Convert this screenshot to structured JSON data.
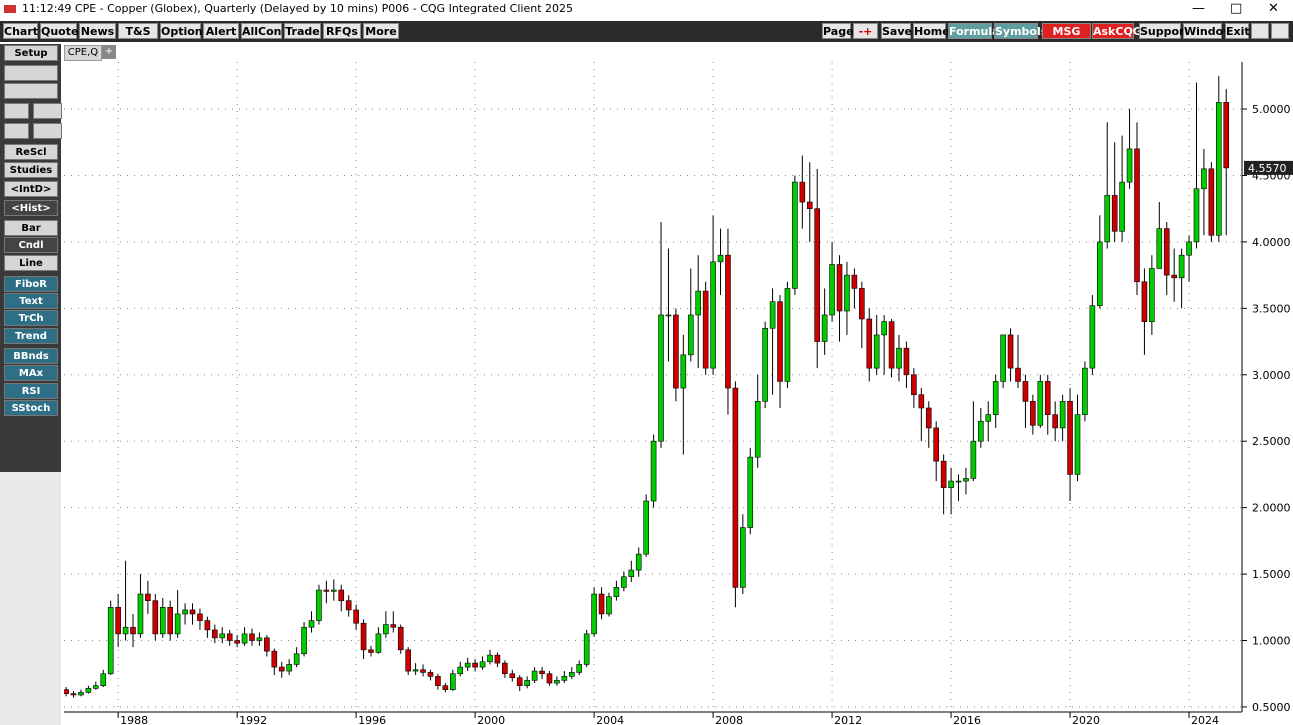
{
  "window": {
    "title": "11:12:49  CPE - Copper (Globex), Quarterly (Delayed by 10 mins)   P006 - CQG Integrated Client 2025"
  },
  "menu": [
    "Chart",
    "Quote",
    "News",
    "T&S",
    "Options",
    "Alert",
    "AllCon",
    "Trade",
    "RFQs",
    "More"
  ],
  "toolbar": [
    "Page",
    "-+",
    "Save",
    "Home",
    "Formula",
    "Symbols",
    "MSG Cntr",
    "AskCQG",
    "Support",
    "Window",
    "Exit"
  ],
  "sidebar": [
    "Setup",
    "ReScl",
    "Studies",
    "<IntD>",
    "<Hist>",
    "Bar",
    "Cndl",
    "Line",
    "FiboR",
    "Text",
    "TrCh",
    "Trend",
    "BBnds",
    "MAx",
    "RSI",
    "SStoch"
  ],
  "tab": "CPE,Q",
  "tab_add": "+",
  "chart_data": {
    "type": "candlestick",
    "up_color": "#00cc00",
    "down_color": "#cc0000",
    "grid": true,
    "xlim": [
      1986.18,
      2025.78
    ],
    "xticks": [
      1988,
      1992,
      1996,
      2000,
      2004,
      2008,
      2012,
      2016,
      2020,
      2024
    ],
    "ylim": [
      0.462,
      5.354
    ],
    "yticks": [
      {
        "value": 0.5,
        "label": "0.5000"
      },
      {
        "value": 1,
        "label": "1.0000"
      },
      {
        "value": 1.5,
        "label": "1.5000"
      },
      {
        "value": 2,
        "label": "2.0000"
      },
      {
        "value": 2.5,
        "label": "2.5000"
      },
      {
        "value": 3,
        "label": "3.0000"
      },
      {
        "value": 3.5,
        "label": "3.5000"
      },
      {
        "value": 4,
        "label": "4.0000"
      },
      {
        "value": 4.5,
        "label": "4.5000"
      },
      {
        "value": 5,
        "label": "5.0000"
      }
    ],
    "last_price_label": "4.5570",
    "x": [
      1986.25,
      1986.5,
      1986.75,
      1987,
      1987.25,
      1987.5,
      1987.75,
      1988,
      1988.25,
      1988.5,
      1988.75,
      1989,
      1989.25,
      1989.5,
      1989.75,
      1990,
      1990.25,
      1990.5,
      1990.75,
      1991,
      1991.25,
      1991.5,
      1991.75,
      1992,
      1992.25,
      1992.5,
      1992.75,
      1993,
      1993.25,
      1993.5,
      1993.75,
      1994,
      1994.25,
      1994.5,
      1994.75,
      1995,
      1995.25,
      1995.5,
      1995.75,
      1996,
      1996.25,
      1996.5,
      1996.75,
      1997,
      1997.25,
      1997.5,
      1997.75,
      1998,
      1998.25,
      1998.5,
      1998.75,
      1999,
      1999.25,
      1999.5,
      1999.75,
      2000,
      2000.25,
      2000.5,
      2000.75,
      2001,
      2001.25,
      2001.5,
      2001.75,
      2002,
      2002.25,
      2002.5,
      2002.75,
      2003,
      2003.25,
      2003.5,
      2003.75,
      2004,
      2004.25,
      2004.5,
      2004.75,
      2005,
      2005.25,
      2005.5,
      2005.75,
      2006,
      2006.25,
      2006.5,
      2006.75,
      2007,
      2007.25,
      2007.5,
      2007.75,
      2008,
      2008.25,
      2008.5,
      2008.75,
      2009,
      2009.25,
      2009.5,
      2009.75,
      2010,
      2010.25,
      2010.5,
      2010.75,
      2011,
      2011.25,
      2011.5,
      2011.75,
      2012,
      2012.25,
      2012.5,
      2012.75,
      2013,
      2013.25,
      2013.5,
      2013.75,
      2014,
      2014.25,
      2014.5,
      2014.75,
      2015,
      2015.25,
      2015.5,
      2015.75,
      2016,
      2016.25,
      2016.5,
      2016.75,
      2017,
      2017.25,
      2017.5,
      2017.75,
      2018,
      2018.25,
      2018.5,
      2018.75,
      2019,
      2019.25,
      2019.5,
      2019.75,
      2020,
      2020.25,
      2020.5,
      2020.75,
      2021,
      2021.25,
      2021.5,
      2021.75,
      2022,
      2022.25,
      2022.5,
      2022.75,
      2023,
      2023.25,
      2023.5,
      2023.75,
      2024,
      2024.25,
      2024.5,
      2024.75,
      2025,
      2025.25
    ],
    "open": [
      0.63,
      0.6,
      0.59,
      0.61,
      0.64,
      0.66,
      0.75,
      1.25,
      1.05,
      1.1,
      1.05,
      1.35,
      1.3,
      1.05,
      1.25,
      1.05,
      1.2,
      1.23,
      1.2,
      1.15,
      1.08,
      1.02,
      1.05,
      1.0,
      0.98,
      1.05,
      1.0,
      1.02,
      0.92,
      0.8,
      0.77,
      0.82,
      0.9,
      1.1,
      1.15,
      1.38,
      1.37,
      1.38,
      1.3,
      1.23,
      1.13,
      0.93,
      0.91,
      1.05,
      1.12,
      1.1,
      0.93,
      0.77,
      0.78,
      0.76,
      0.73,
      0.66,
      0.63,
      0.75,
      0.8,
      0.83,
      0.8,
      0.84,
      0.89,
      0.83,
      0.75,
      0.72,
      0.66,
      0.7,
      0.77,
      0.75,
      0.68,
      0.7,
      0.73,
      0.76,
      0.82,
      1.05,
      1.35,
      1.2,
      1.33,
      1.4,
      1.48,
      1.53,
      1.65,
      2.05,
      2.5,
      3.45,
      3.45,
      2.9,
      3.15,
      3.45,
      3.63,
      3.05,
      3.85,
      3.9,
      2.9,
      1.4,
      1.85,
      2.38,
      2.8,
      3.35,
      3.55,
      2.95,
      3.65,
      4.45,
      4.3,
      4.25,
      3.25,
      3.45,
      3.83,
      3.48,
      3.75,
      3.65,
      3.42,
      3.05,
      3.3,
      3.4,
      3.05,
      3.2,
      3.0,
      2.85,
      2.75,
      2.6,
      2.35,
      2.15,
      2.2,
      2.2,
      2.22,
      2.5,
      2.65,
      2.7,
      2.95,
      3.3,
      3.05,
      2.95,
      2.8,
      2.62,
      2.95,
      2.7,
      2.6,
      2.8,
      2.25,
      2.7,
      3.05,
      3.52,
      4.0,
      4.35,
      4.08,
      4.45,
      4.7,
      3.7,
      3.4,
      3.8,
      4.1,
      3.75,
      3.73,
      3.9,
      4.0,
      4.4,
      4.55,
      4.05,
      5.05
    ],
    "high": [
      0.65,
      0.62,
      0.63,
      0.66,
      0.69,
      0.78,
      1.3,
      1.35,
      1.6,
      1.2,
      1.5,
      1.45,
      1.35,
      1.32,
      1.3,
      1.38,
      1.28,
      1.28,
      1.24,
      1.18,
      1.12,
      1.1,
      1.08,
      1.04,
      1.1,
      1.09,
      1.06,
      1.04,
      0.94,
      0.84,
      0.86,
      0.95,
      1.14,
      1.22,
      1.42,
      1.45,
      1.46,
      1.42,
      1.34,
      1.27,
      1.16,
      0.96,
      1.1,
      1.22,
      1.22,
      1.12,
      0.95,
      0.83,
      0.82,
      0.78,
      0.75,
      0.68,
      0.78,
      0.84,
      0.87,
      0.86,
      0.88,
      0.93,
      0.91,
      0.85,
      0.78,
      0.74,
      0.73,
      0.8,
      0.8,
      0.77,
      0.73,
      0.77,
      0.8,
      0.85,
      1.08,
      1.4,
      1.4,
      1.36,
      1.45,
      1.52,
      1.6,
      1.7,
      2.1,
      2.55,
      4.15,
      3.95,
      3.5,
      3.3,
      3.8,
      3.9,
      3.7,
      4.2,
      4.1,
      4.1,
      2.95,
      1.95,
      2.45,
      3.0,
      3.4,
      3.65,
      3.6,
      3.7,
      4.5,
      4.65,
      4.6,
      4.55,
      3.65,
      4.0,
      3.9,
      3.85,
      3.8,
      3.7,
      3.5,
      3.45,
      3.45,
      3.42,
      3.3,
      3.25,
      3.05,
      2.9,
      2.8,
      2.65,
      2.4,
      2.3,
      2.25,
      2.3,
      2.8,
      2.75,
      2.8,
      3.0,
      3.3,
      3.35,
      3.3,
      3.0,
      2.85,
      3.0,
      3.0,
      2.8,
      2.85,
      2.9,
      2.85,
      3.1,
      3.6,
      4.2,
      4.9,
      4.75,
      4.8,
      5.0,
      4.9,
      3.8,
      3.9,
      4.3,
      4.15,
      3.95,
      3.95,
      4.05,
      5.2,
      4.7,
      4.6,
      5.25,
      5.15
    ],
    "low": [
      0.58,
      0.57,
      0.58,
      0.6,
      0.63,
      0.65,
      0.74,
      0.95,
      1.0,
      0.95,
      1.02,
      1.2,
      1.0,
      1.02,
      1.0,
      1.02,
      1.12,
      1.12,
      1.08,
      1.02,
      0.98,
      0.98,
      0.96,
      0.95,
      0.96,
      0.96,
      0.96,
      0.88,
      0.74,
      0.72,
      0.74,
      0.8,
      0.88,
      1.06,
      1.12,
      1.28,
      1.3,
      1.22,
      1.18,
      1.08,
      0.86,
      0.88,
      0.9,
      1.02,
      1.06,
      0.9,
      0.74,
      0.74,
      0.73,
      0.7,
      0.63,
      0.61,
      0.62,
      0.73,
      0.77,
      0.77,
      0.78,
      0.82,
      0.8,
      0.72,
      0.69,
      0.62,
      0.64,
      0.68,
      0.71,
      0.66,
      0.66,
      0.68,
      0.71,
      0.74,
      0.8,
      1.03,
      1.16,
      1.18,
      1.3,
      1.37,
      1.44,
      1.48,
      1.63,
      2.0,
      2.45,
      3.1,
      2.8,
      2.4,
      3.1,
      3.05,
      3.0,
      3.0,
      3.6,
      2.7,
      1.25,
      1.35,
      1.8,
      2.3,
      2.75,
      2.85,
      2.75,
      2.9,
      3.6,
      4.1,
      4.0,
      3.05,
      3.15,
      3.4,
      3.25,
      3.3,
      3.5,
      3.2,
      2.95,
      3.0,
      3.0,
      2.98,
      2.95,
      2.9,
      2.75,
      2.5,
      2.45,
      2.2,
      1.95,
      1.95,
      2.05,
      2.1,
      2.2,
      2.45,
      2.5,
      2.6,
      2.9,
      2.95,
      2.9,
      2.6,
      2.55,
      2.6,
      2.55,
      2.5,
      2.5,
      2.05,
      2.2,
      2.65,
      3.0,
      3.5,
      3.95,
      4.0,
      4.0,
      4.4,
      3.6,
      3.15,
      3.3,
      3.8,
      3.6,
      3.55,
      3.5,
      3.7,
      3.95,
      4.05,
      4.0,
      4.0,
      4.05
    ],
    "close": [
      0.6,
      0.59,
      0.61,
      0.64,
      0.66,
      0.75,
      1.25,
      1.05,
      1.1,
      1.05,
      1.35,
      1.3,
      1.05,
      1.25,
      1.05,
      1.2,
      1.23,
      1.2,
      1.15,
      1.08,
      1.02,
      1.05,
      1.0,
      0.98,
      1.05,
      1.0,
      1.02,
      0.92,
      0.8,
      0.77,
      0.82,
      0.9,
      1.1,
      1.15,
      1.38,
      1.37,
      1.38,
      1.3,
      1.23,
      1.13,
      0.93,
      0.91,
      1.05,
      1.12,
      1.1,
      0.93,
      0.77,
      0.78,
      0.76,
      0.73,
      0.66,
      0.63,
      0.75,
      0.8,
      0.83,
      0.8,
      0.84,
      0.89,
      0.83,
      0.75,
      0.72,
      0.66,
      0.7,
      0.77,
      0.75,
      0.68,
      0.7,
      0.73,
      0.76,
      0.82,
      1.05,
      1.35,
      1.2,
      1.33,
      1.4,
      1.48,
      1.53,
      1.65,
      2.05,
      2.5,
      3.45,
      3.45,
      2.9,
      3.15,
      3.45,
      3.63,
      3.05,
      3.85,
      3.9,
      2.9,
      1.4,
      1.85,
      2.38,
      2.8,
      3.35,
      3.55,
      2.95,
      3.65,
      4.45,
      4.3,
      4.25,
      3.25,
      3.45,
      3.83,
      3.48,
      3.75,
      3.65,
      3.42,
      3.05,
      3.3,
      3.4,
      3.05,
      3.2,
      3.0,
      2.85,
      2.75,
      2.6,
      2.35,
      2.15,
      2.2,
      2.2,
      2.22,
      2.5,
      2.65,
      2.7,
      2.95,
      3.3,
      3.05,
      2.95,
      2.8,
      2.62,
      2.95,
      2.7,
      2.6,
      2.8,
      2.25,
      2.7,
      3.05,
      3.52,
      4.0,
      4.35,
      4.08,
      4.45,
      4.7,
      3.7,
      3.4,
      3.8,
      4.1,
      3.75,
      3.73,
      3.9,
      4.0,
      4.4,
      4.55,
      4.05,
      5.05,
      4.557
    ]
  }
}
